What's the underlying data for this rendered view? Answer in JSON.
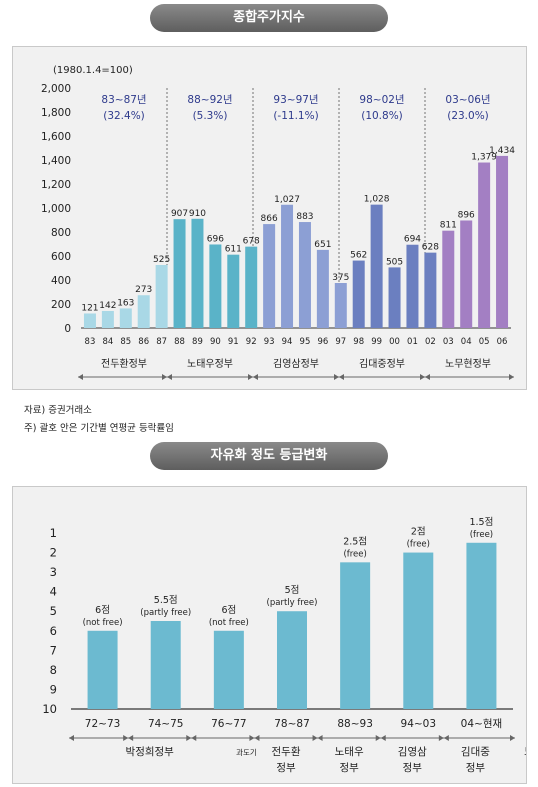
{
  "titles": {
    "chart1": "종합주가지수",
    "chart2": "자유화 정도 등급변화"
  },
  "notes": {
    "source": "자료) 증권거래소",
    "footnote": "주) 괄호 안은 기간별 연평균 등락률임"
  },
  "chart_data": [
    {
      "type": "bar",
      "title": "종합주가지수",
      "unit_label": "(1980.1.4=100)",
      "ylim": [
        0,
        2000
      ],
      "yticks": [
        "0",
        "200",
        "400",
        "600",
        "800",
        "1,000",
        "1,200",
        "1,400",
        "1,600",
        "1,800",
        "2,000"
      ],
      "categories": [
        "83",
        "84",
        "85",
        "86",
        "87",
        "88",
        "89",
        "90",
        "91",
        "92",
        "93",
        "94",
        "95",
        "96",
        "97",
        "98",
        "99",
        "00",
        "01",
        "02",
        "03",
        "04",
        "05",
        "06"
      ],
      "values": [
        121,
        142,
        163,
        273,
        525,
        907,
        910,
        696,
        611,
        678,
        866,
        1027,
        883,
        651,
        375,
        562,
        1028,
        505,
        694,
        628,
        811,
        896,
        1379,
        1434
      ],
      "value_labels": [
        "121",
        "142",
        "163",
        "273",
        "525",
        "907",
        "910",
        "696",
        "611",
        "678",
        "866",
        "1,027",
        "883",
        "651",
        "375",
        "562",
        "1,028",
        "505",
        "694",
        "628",
        "811",
        "896",
        "1,379",
        "1,434"
      ],
      "periods": [
        {
          "range": "83~87년",
          "change": "(32.4%)",
          "government": "전두환정부",
          "color": "#a9d8e6"
        },
        {
          "range": "88~92년",
          "change": "(5.3%)",
          "government": "노태우정부",
          "color": "#5ab3c8"
        },
        {
          "range": "93~97년",
          "change": "(-11.1%)",
          "government": "김영삼정부",
          "color": "#8c9fd4"
        },
        {
          "range": "98~02년",
          "change": "(10.8%)",
          "government": "김대중정부",
          "color": "#6b7fc0"
        },
        {
          "range": "03~06년",
          "change": "(23.0%)",
          "government": "노무현정부",
          "color": "#a37fc3"
        }
      ],
      "grid": false,
      "accent_text_color": "#2e3a8c"
    },
    {
      "type": "bar",
      "title": "자유화 정도 등급변화",
      "ylim": [
        1,
        10
      ],
      "y_inverted": true,
      "yticks": [
        "1",
        "2",
        "3",
        "4",
        "5",
        "6",
        "7",
        "8",
        "9",
        "10"
      ],
      "categories": [
        "72~73",
        "74~75",
        "76~77",
        "78~87",
        "88~93",
        "94~03",
        "04~현재"
      ],
      "values": [
        6,
        5.5,
        6,
        5,
        2.5,
        2,
        1.5
      ],
      "value_labels": [
        "6점",
        "5.5점",
        "6점",
        "5점",
        "2.5점",
        "2점",
        "1.5점"
      ],
      "status_labels": [
        "(not free)",
        "(partly free)",
        "(not free)",
        "(partly free)",
        "(free)",
        "(free)",
        "(free)"
      ],
      "bar_color": "#6cbad0",
      "governments": [
        "박정희정부",
        "과도기",
        "전두환 정부",
        "노태우 정부",
        "김영삼 정부",
        "김대중 정부",
        "노무현 정부"
      ]
    }
  ]
}
